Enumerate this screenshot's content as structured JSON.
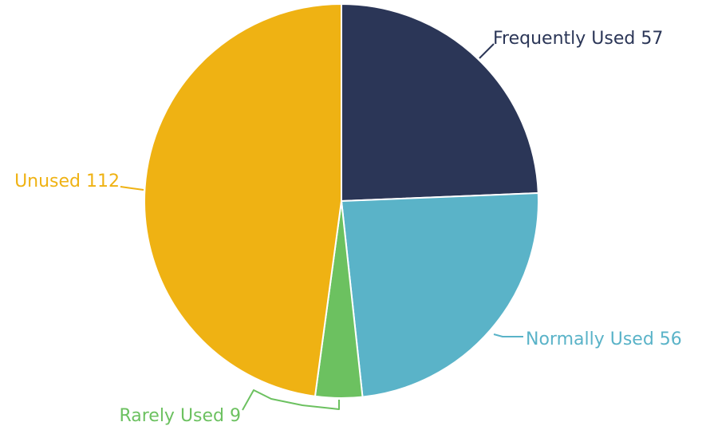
{
  "chart_data": {
    "type": "pie",
    "title": "",
    "start_angle_deg": 0,
    "direction": "clockwise",
    "labels_style": "outside-with-leader-lines",
    "slices": [
      {
        "name": "Frequently Used",
        "value": 57,
        "label": "Frequently Used 57",
        "color": "#2b3657"
      },
      {
        "name": "Normally Used",
        "value": 56,
        "label": "Normally Used 56",
        "color": "#5ab3c8"
      },
      {
        "name": "Rarely Used",
        "value": 9,
        "label": "Rarely Used 9",
        "color": "#6cc160"
      },
      {
        "name": "Unused",
        "value": 112,
        "label": "Unused 112",
        "color": "#efb213"
      }
    ]
  }
}
